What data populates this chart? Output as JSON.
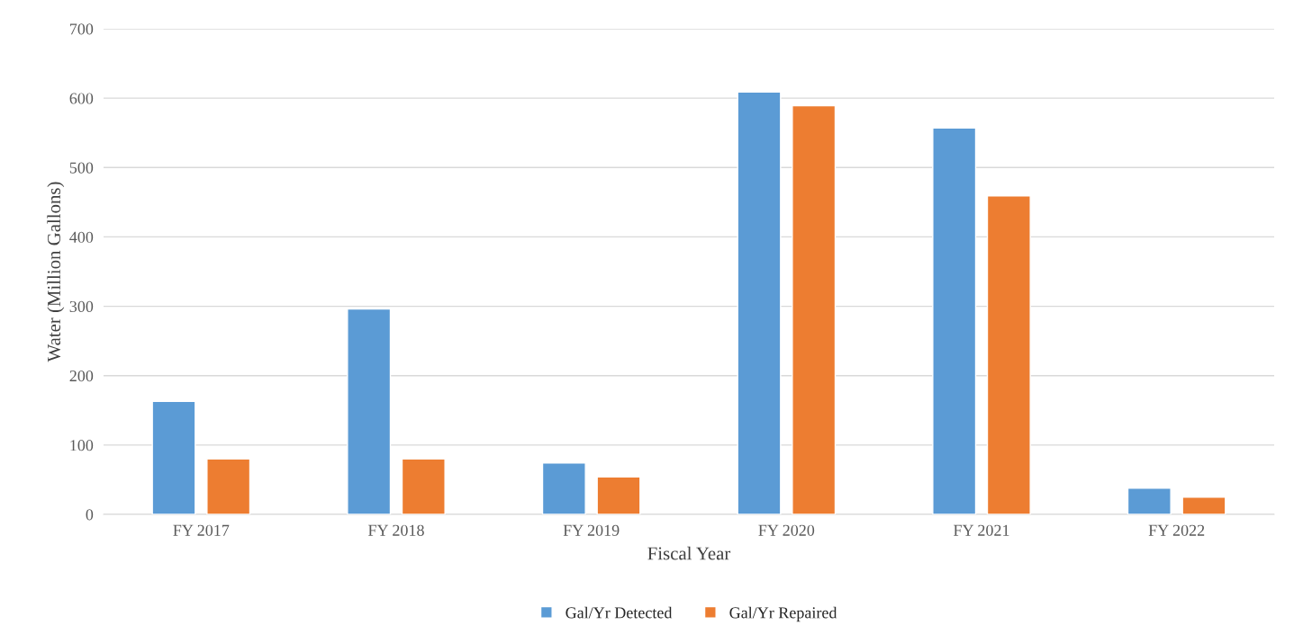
{
  "chart_data": {
    "type": "bar",
    "xlabel": "Fiscal Year",
    "ylabel": "Water (Million Gallons)",
    "categories": [
      "FY 2017",
      "FY 2018",
      "FY 2019",
      "FY 2020",
      "FY 2021",
      "FY 2022"
    ],
    "series": [
      {
        "name": "Gal/Yr Detected",
        "color": "#5b9bd5",
        "values": [
          163,
          296,
          74,
          609,
          557,
          38
        ]
      },
      {
        "name": "Gal/Yr Repaired",
        "color": "#ed7d31",
        "values": [
          80,
          80,
          54,
          589,
          459,
          25
        ]
      }
    ],
    "ylim": [
      0,
      700
    ],
    "yticks": [
      0,
      100,
      200,
      300,
      400,
      500,
      600,
      700
    ],
    "grid": "y",
    "legend": "bottom"
  }
}
